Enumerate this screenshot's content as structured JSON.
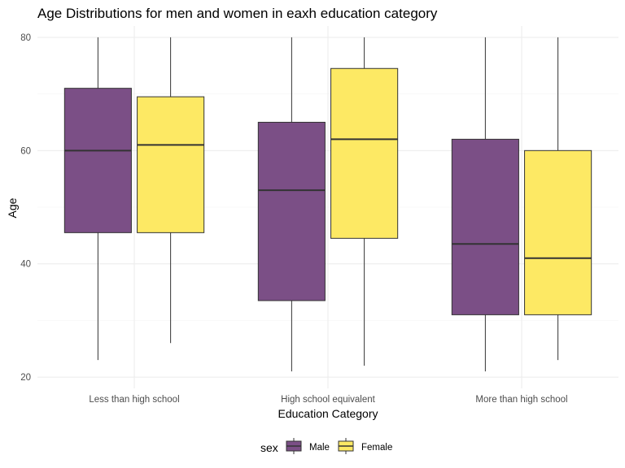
{
  "chart_data": {
    "type": "boxplot",
    "title": "Age Distributions for men and women in eaxh education category",
    "xlabel": "Education Category",
    "ylabel": "Age",
    "ylim": [
      18,
      82
    ],
    "yticks": [
      20,
      40,
      60,
      80
    ],
    "grid": true,
    "categories": [
      "Less than high school",
      "High school equivalent",
      "More than high school"
    ],
    "legend": {
      "title": "sex",
      "position": "bottom"
    },
    "series": [
      {
        "name": "Male",
        "color": "#7b4f86",
        "boxes": [
          {
            "min": 23,
            "q1": 45.5,
            "median": 60,
            "q3": 71,
            "max": 80
          },
          {
            "min": 21,
            "q1": 33.5,
            "median": 53,
            "q3": 65,
            "max": 80
          },
          {
            "min": 21,
            "q1": 31,
            "median": 43.5,
            "q3": 62,
            "max": 80
          }
        ]
      },
      {
        "name": "Female",
        "color": "#fde964",
        "boxes": [
          {
            "min": 26,
            "q1": 45.5,
            "median": 61,
            "q3": 69.5,
            "max": 80
          },
          {
            "min": 22,
            "q1": 44.5,
            "median": 62,
            "q3": 74.5,
            "max": 80
          },
          {
            "min": 23,
            "q1": 31,
            "median": 41,
            "q3": 60,
            "max": 80
          }
        ]
      }
    ]
  }
}
